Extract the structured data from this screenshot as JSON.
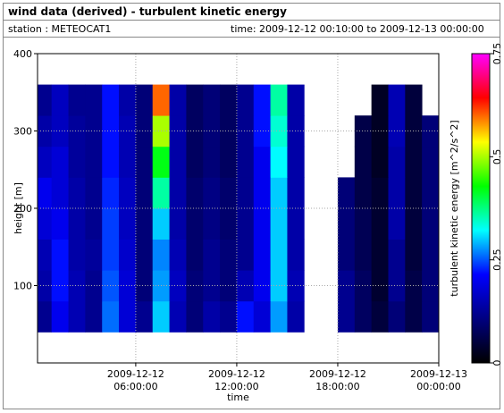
{
  "header": {
    "title": "wind data (derived) - turbulent kinetic energy",
    "station": "station : METEOCAT1",
    "time": "time: 2009-12-12 00:10:00 to 2009-12-13 00:00:00"
  },
  "chart_data": {
    "type": "heatmap",
    "xlabel": "time",
    "ylabel": "height [m]",
    "colorbar_label": "turbulent kinetic energy [m^2/s^2]",
    "xlim": [
      0.1667,
      24
    ],
    "ylim": [
      0,
      400
    ],
    "xticks": [
      {
        "value": 6,
        "label": "2009-12-12 06:00:00"
      },
      {
        "value": 12,
        "label": "2009-12-12 12:00:00"
      },
      {
        "value": 18,
        "label": "2009-12-12 18:00:00"
      },
      {
        "value": 24,
        "label": "2009-12-13 00:00:00"
      }
    ],
    "yticks": [
      100,
      200,
      300,
      400
    ],
    "grid": true,
    "clim": [
      0,
      0.75
    ],
    "cticks": [
      0,
      0.25,
      0.5,
      0.75
    ],
    "colormap": [
      "#000000",
      "#000080",
      "#0000ff",
      "#00ffff",
      "#00ff00",
      "#ffff00",
      "#ff0000",
      "#ff00ff"
    ],
    "xbins": [
      0.1667,
      1,
      2,
      3,
      4,
      5,
      6,
      7,
      8,
      9,
      10,
      11,
      12,
      13,
      14,
      15,
      16,
      17,
      18,
      19,
      20,
      21,
      22,
      23,
      24
    ],
    "ybins": [
      40,
      80,
      120,
      160,
      200,
      240,
      280,
      320,
      360
    ],
    "values": [
      [
        0.12,
        0.2,
        0.15,
        0.12,
        0.26,
        0.18,
        0.12,
        0.3,
        0.15,
        0.1,
        0.14,
        0.12,
        0.22,
        0.18,
        0.28,
        0.14,
        null,
        null,
        0.12,
        0.08,
        0.05,
        0.1,
        0.06,
        0.1
      ],
      [
        0.14,
        0.22,
        0.15,
        0.12,
        0.25,
        0.18,
        0.1,
        0.28,
        0.16,
        0.1,
        0.12,
        0.1,
        0.15,
        0.2,
        0.3,
        0.15,
        null,
        null,
        0.12,
        0.08,
        0.04,
        0.12,
        0.06,
        0.1
      ],
      [
        0.15,
        0.22,
        0.14,
        0.13,
        0.24,
        0.17,
        0.1,
        0.27,
        0.15,
        0.09,
        0.12,
        0.1,
        0.12,
        0.2,
        0.3,
        0.14,
        null,
        null,
        0.1,
        0.07,
        0.04,
        0.12,
        0.05,
        0.1
      ],
      [
        0.18,
        0.2,
        0.14,
        0.12,
        0.24,
        0.16,
        0.1,
        0.3,
        0.14,
        0.09,
        0.11,
        0.09,
        0.12,
        0.2,
        0.3,
        0.14,
        null,
        null,
        0.1,
        0.07,
        0.04,
        0.14,
        0.05,
        0.1
      ],
      [
        0.2,
        0.18,
        0.14,
        0.12,
        0.23,
        0.16,
        0.1,
        0.36,
        0.14,
        0.09,
        0.11,
        0.09,
        0.12,
        0.2,
        0.3,
        0.14,
        null,
        null,
        0.1,
        0.06,
        0.04,
        0.14,
        0.05,
        0.1
      ],
      [
        0.16,
        0.18,
        0.13,
        0.12,
        0.22,
        0.15,
        0.1,
        0.42,
        0.14,
        0.08,
        0.1,
        0.08,
        0.12,
        0.2,
        0.32,
        0.14,
        null,
        null,
        null,
        0.06,
        0.03,
        0.14,
        0.05,
        0.1
      ],
      [
        0.14,
        0.16,
        0.13,
        0.12,
        0.22,
        0.15,
        0.1,
        0.5,
        0.14,
        0.08,
        0.1,
        0.08,
        0.12,
        0.22,
        0.34,
        0.14,
        null,
        null,
        null,
        0.06,
        0.03,
        0.15,
        0.05,
        0.1
      ],
      [
        0.12,
        0.16,
        0.12,
        0.12,
        0.22,
        0.14,
        0.1,
        0.6,
        0.14,
        0.08,
        0.1,
        0.08,
        0.12,
        0.22,
        0.36,
        0.14,
        null,
        null,
        null,
        null,
        0.03,
        0.15,
        0.05,
        null
      ]
    ]
  }
}
